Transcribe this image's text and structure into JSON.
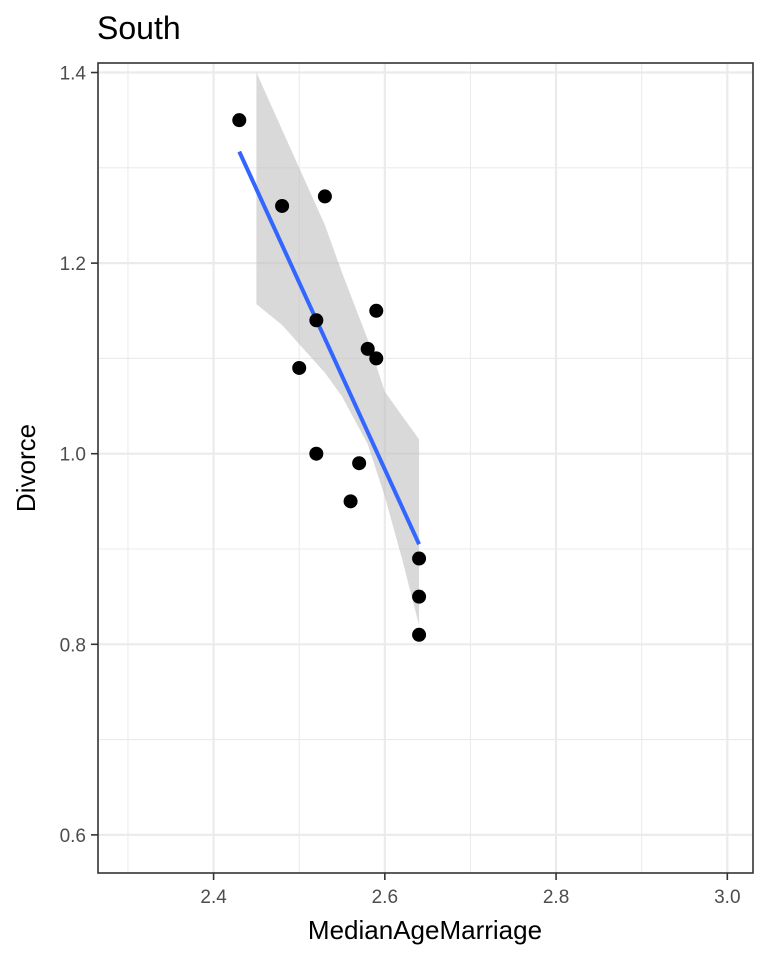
{
  "chart_data": {
    "type": "scatter",
    "title": "South",
    "xlabel": "MedianAgeMarriage",
    "ylabel": "Divorce",
    "xlim": [
      2.265,
      3.03
    ],
    "ylim": [
      0.56,
      1.41
    ],
    "x_ticks": [
      2.4,
      2.6,
      2.8,
      3.0
    ],
    "x_tick_labels": [
      "2.4",
      "2.6",
      "2.8",
      "3.0"
    ],
    "y_ticks": [
      0.6,
      0.8,
      1.0,
      1.2,
      1.4
    ],
    "y_tick_labels": [
      "0.6",
      "0.8",
      "1.0",
      "1.2",
      "1.4"
    ],
    "grid": true,
    "theme": "bw",
    "colors": {
      "points": "#000000",
      "line": "#3366ff",
      "ribbon": "#bfbfbf",
      "grid": "#ebebeb",
      "panel_border": "#333333"
    },
    "points": [
      {
        "x": 2.43,
        "y": 1.35
      },
      {
        "x": 2.48,
        "y": 1.26
      },
      {
        "x": 2.53,
        "y": 1.27
      },
      {
        "x": 2.52,
        "y": 1.14
      },
      {
        "x": 2.59,
        "y": 1.15
      },
      {
        "x": 2.58,
        "y": 1.11
      },
      {
        "x": 2.59,
        "y": 1.1
      },
      {
        "x": 2.5,
        "y": 1.09
      },
      {
        "x": 2.52,
        "y": 1.0
      },
      {
        "x": 2.57,
        "y": 0.99
      },
      {
        "x": 2.56,
        "y": 0.95
      },
      {
        "x": 2.64,
        "y": 0.89
      },
      {
        "x": 2.64,
        "y": 0.85
      },
      {
        "x": 2.64,
        "y": 0.81
      }
    ],
    "fit_line": {
      "method": "lm",
      "x": [
        2.43,
        2.64
      ],
      "y": [
        1.317,
        0.905
      ]
    },
    "ribbon": {
      "x": [
        2.45,
        2.48,
        2.5,
        2.53,
        2.55,
        2.58,
        2.6,
        2.62,
        2.64
      ],
      "lower": [
        1.157,
        1.135,
        1.115,
        1.085,
        1.06,
        1.01,
        0.955,
        0.89,
        0.82
      ],
      "upper": [
        1.4,
        1.34,
        1.3,
        1.24,
        1.19,
        1.12,
        1.065,
        1.04,
        1.015
      ]
    }
  }
}
